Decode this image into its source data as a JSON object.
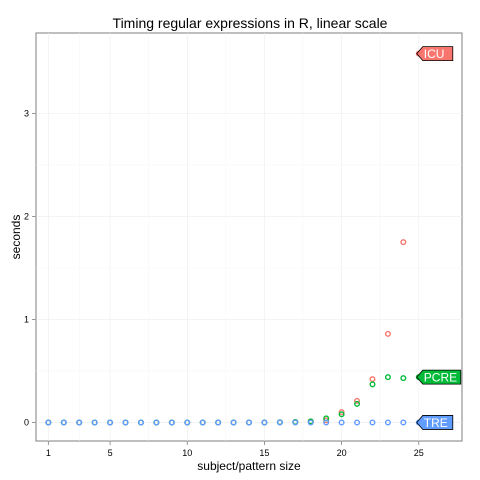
{
  "chart_data": {
    "type": "scatter",
    "title": "Timing regular expressions in R, linear scale",
    "xlabel": "subject/pattern size",
    "ylabel": "seconds",
    "xlim": [
      0.2,
      27.8
    ],
    "ylim": [
      -0.18,
      3.78
    ],
    "x_ticks": [
      1,
      5,
      10,
      15,
      20,
      25
    ],
    "y_ticks": [
      0,
      1,
      2,
      3
    ],
    "grid": true,
    "series": [
      {
        "name": "ICU",
        "color": "#F8766D",
        "x": [
          1,
          2,
          3,
          4,
          5,
          6,
          7,
          8,
          9,
          10,
          11,
          12,
          13,
          14,
          15,
          16,
          17,
          18,
          19,
          20,
          21,
          22,
          23,
          24,
          25
        ],
        "values": [
          0,
          0,
          0,
          0,
          0,
          0,
          0,
          0,
          0,
          0,
          0,
          0,
          0,
          0,
          0,
          0.002,
          0.005,
          0.01,
          0.02,
          0.1,
          0.21,
          0.42,
          0.86,
          1.75,
          3.58
        ]
      },
      {
        "name": "PCRE",
        "color": "#00BA38",
        "x": [
          1,
          2,
          3,
          4,
          5,
          6,
          7,
          8,
          9,
          10,
          11,
          12,
          13,
          14,
          15,
          16,
          17,
          18,
          19,
          20,
          21,
          22,
          23,
          24,
          25
        ],
        "values": [
          0,
          0,
          0,
          0,
          0,
          0,
          0,
          0,
          0,
          0,
          0,
          0,
          0,
          0,
          0,
          0.002,
          0.005,
          0.01,
          0.04,
          0.08,
          0.18,
          0.37,
          0.44,
          0.43,
          0.44
        ]
      },
      {
        "name": "TRE",
        "color": "#619CFF",
        "x": [
          1,
          2,
          3,
          4,
          5,
          6,
          7,
          8,
          9,
          10,
          11,
          12,
          13,
          14,
          15,
          16,
          17,
          18,
          19,
          20,
          21,
          22,
          23,
          24,
          25
        ],
        "values": [
          0,
          0,
          0,
          0,
          0,
          0,
          0,
          0,
          0,
          0,
          0,
          0,
          0,
          0,
          0,
          0,
          0,
          0,
          0,
          0,
          0,
          0,
          0,
          0,
          0
        ]
      }
    ],
    "direct_labels": [
      {
        "text": "ICU",
        "series": "ICU",
        "x": 25,
        "y": 3.58
      },
      {
        "text": "PCRE",
        "series": "PCRE",
        "x": 25,
        "y": 0.44
      },
      {
        "text": "TRE",
        "series": "TRE",
        "x": 25,
        "y": 0
      }
    ]
  }
}
